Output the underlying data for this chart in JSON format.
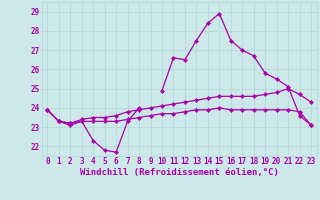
{
  "title": "",
  "xlabel": "Windchill (Refroidissement éolien,°C)",
  "background_color": "#cce8e8",
  "line_color": "#aa00aa",
  "xlim": [
    -0.5,
    23.5
  ],
  "ylim": [
    21.5,
    29.5
  ],
  "yticks": [
    22,
    23,
    24,
    25,
    26,
    27,
    28,
    29
  ],
  "xticks": [
    0,
    1,
    2,
    3,
    4,
    5,
    6,
    7,
    8,
    9,
    10,
    11,
    12,
    13,
    14,
    15,
    16,
    17,
    18,
    19,
    20,
    21,
    22,
    23
  ],
  "x": [
    0,
    1,
    2,
    3,
    4,
    5,
    6,
    7,
    8,
    9,
    10,
    11,
    12,
    13,
    14,
    15,
    16,
    17,
    18,
    19,
    20,
    21,
    22,
    23
  ],
  "line1": [
    23.9,
    23.3,
    23.1,
    23.3,
    22.3,
    21.8,
    21.7,
    23.3,
    24.0,
    null,
    24.9,
    26.6,
    26.5,
    27.5,
    28.4,
    28.9,
    27.5,
    27.0,
    26.7,
    25.8,
    25.5,
    25.1,
    23.6,
    23.1
  ],
  "line2": [
    23.9,
    23.3,
    23.2,
    23.4,
    23.5,
    23.5,
    23.6,
    23.8,
    23.9,
    24.0,
    24.1,
    24.2,
    24.3,
    24.4,
    24.5,
    24.6,
    24.6,
    24.6,
    24.6,
    24.7,
    24.8,
    25.0,
    24.7,
    24.3
  ],
  "line3": [
    23.9,
    23.3,
    23.2,
    23.3,
    23.3,
    23.3,
    23.3,
    23.4,
    23.5,
    23.6,
    23.7,
    23.7,
    23.8,
    23.9,
    23.9,
    24.0,
    23.9,
    23.9,
    23.9,
    23.9,
    23.9,
    23.9,
    23.8,
    23.1
  ],
  "grid_color": "#b0d8d8",
  "tick_fontsize": 5.5,
  "xlabel_fontsize": 6.5
}
